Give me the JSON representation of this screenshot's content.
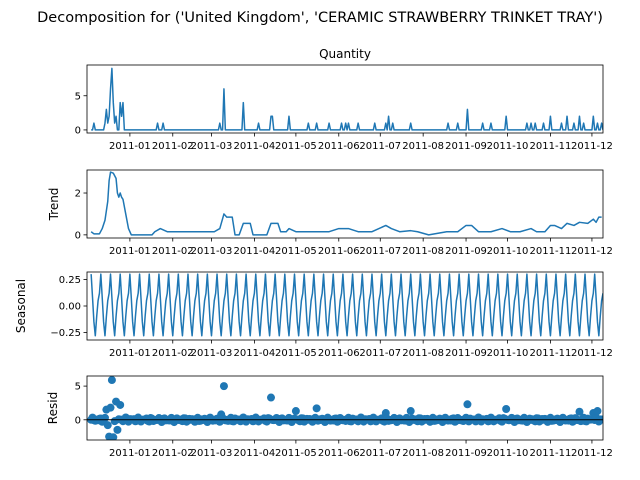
{
  "figure": {
    "suptitle": "Decomposition for ('United Kingdom', 'CERAMIC STRAWBERRY TRINKET TRAY')"
  },
  "colors": {
    "series": "#1f77b4",
    "axis": "#000000"
  },
  "chart_data": [
    {
      "type": "line",
      "title": "Quantity",
      "ylabel": "",
      "ylim": [
        -0.45,
        9.5
      ],
      "yticks": [
        0,
        5
      ],
      "xticks": [
        "2011-01",
        "2011-02",
        "2011-03",
        "2011-04",
        "2011-05",
        "2011-06",
        "2011-07",
        "2011-08",
        "2011-09",
        "2011-10",
        "2011-11",
        "2011-12"
      ],
      "xlim_dates": [
        "2010-12-01",
        "2011-12-09"
      ],
      "spikes": [
        [
          "2010-12-06",
          1
        ],
        [
          "2010-12-07",
          0
        ],
        [
          "2010-12-08",
          0
        ],
        [
          "2010-12-14",
          1
        ],
        [
          "2010-12-15",
          3
        ],
        [
          "2010-12-16",
          1
        ],
        [
          "2010-12-17",
          2
        ],
        [
          "2010-12-18",
          6
        ],
        [
          "2010-12-19",
          9
        ],
        [
          "2010-12-20",
          4
        ],
        [
          "2010-12-21",
          1
        ],
        [
          "2010-12-22",
          2
        ],
        [
          "2010-12-23",
          0
        ],
        [
          "2010-12-25",
          4
        ],
        [
          "2010-12-26",
          2
        ],
        [
          "2010-12-27",
          4
        ],
        [
          "2011-01-21",
          1
        ],
        [
          "2011-01-25",
          1
        ],
        [
          "2011-03-07",
          1
        ],
        [
          "2011-03-10",
          6
        ],
        [
          "2011-03-24",
          4
        ],
        [
          "2011-04-04",
          1
        ],
        [
          "2011-04-13",
          2
        ],
        [
          "2011-04-14",
          2
        ],
        [
          "2011-04-26",
          2
        ],
        [
          "2011-05-10",
          1
        ],
        [
          "2011-05-16",
          1
        ],
        [
          "2011-05-25",
          1
        ],
        [
          "2011-06-03",
          1
        ],
        [
          "2011-06-06",
          1
        ],
        [
          "2011-06-08",
          1
        ],
        [
          "2011-06-15",
          1
        ],
        [
          "2011-06-27",
          1
        ],
        [
          "2011-07-05",
          1
        ],
        [
          "2011-07-07",
          2
        ],
        [
          "2011-07-10",
          1
        ],
        [
          "2011-07-23",
          1
        ],
        [
          "2011-08-19",
          1
        ],
        [
          "2011-08-26",
          1
        ],
        [
          "2011-09-02",
          3
        ],
        [
          "2011-09-13",
          1
        ],
        [
          "2011-09-19",
          1
        ],
        [
          "2011-09-30",
          2
        ],
        [
          "2011-10-15",
          1
        ],
        [
          "2011-10-18",
          1
        ],
        [
          "2011-10-21",
          1
        ],
        [
          "2011-10-27",
          1
        ],
        [
          "2011-11-01",
          2
        ],
        [
          "2011-11-09",
          1
        ],
        [
          "2011-11-13",
          2
        ],
        [
          "2011-11-18",
          1
        ],
        [
          "2011-11-22",
          2
        ],
        [
          "2011-11-25",
          1
        ],
        [
          "2011-12-02",
          2
        ],
        [
          "2011-12-05",
          1
        ],
        [
          "2011-12-08",
          1
        ]
      ]
    },
    {
      "type": "line",
      "title": "",
      "ylabel": "Trend",
      "ylim": [
        -0.15,
        3.1
      ],
      "yticks": [
        0,
        2
      ],
      "xticks": [
        "2011-01",
        "2011-02",
        "2011-03",
        "2011-04",
        "2011-05",
        "2011-06",
        "2011-07",
        "2011-08",
        "2011-09",
        "2011-10",
        "2011-11",
        "2011-12"
      ],
      "xlim_dates": [
        "2010-12-01",
        "2011-12-09"
      ],
      "points": [
        [
          "2010-12-04",
          0.15
        ],
        [
          "2010-12-06",
          0.05
        ],
        [
          "2010-12-10",
          0.05
        ],
        [
          "2010-12-12",
          0.3
        ],
        [
          "2010-12-14",
          0.7
        ],
        [
          "2010-12-16",
          1.6
        ],
        [
          "2010-12-17",
          2.6
        ],
        [
          "2010-12-18",
          3.0
        ],
        [
          "2010-12-20",
          2.95
        ],
        [
          "2010-12-22",
          2.7
        ],
        [
          "2010-12-23",
          2.0
        ],
        [
          "2010-12-24",
          1.8
        ],
        [
          "2010-12-25",
          2.0
        ],
        [
          "2010-12-26",
          1.8
        ],
        [
          "2010-12-27",
          1.7
        ],
        [
          "2010-12-29",
          1.0
        ],
        [
          "2010-12-31",
          0.3
        ],
        [
          "2011-01-02",
          0.0
        ],
        [
          "2011-01-17",
          0.0
        ],
        [
          "2011-01-19",
          0.15
        ],
        [
          "2011-01-23",
          0.3
        ],
        [
          "2011-01-28",
          0.15
        ],
        [
          "2011-03-03",
          0.15
        ],
        [
          "2011-03-07",
          0.3
        ],
        [
          "2011-03-10",
          1.0
        ],
        [
          "2011-03-12",
          0.85
        ],
        [
          "2011-03-16",
          0.85
        ],
        [
          "2011-03-18",
          0.0
        ],
        [
          "2011-03-21",
          0.0
        ],
        [
          "2011-03-24",
          0.55
        ],
        [
          "2011-03-29",
          0.55
        ],
        [
          "2011-03-31",
          0.0
        ],
        [
          "2011-04-10",
          0.0
        ],
        [
          "2011-04-13",
          0.55
        ],
        [
          "2011-04-18",
          0.55
        ],
        [
          "2011-04-20",
          0.15
        ],
        [
          "2011-04-24",
          0.15
        ],
        [
          "2011-04-26",
          0.3
        ],
        [
          "2011-05-01",
          0.15
        ],
        [
          "2011-05-10",
          0.15
        ],
        [
          "2011-05-25",
          0.15
        ],
        [
          "2011-06-01",
          0.3
        ],
        [
          "2011-06-08",
          0.3
        ],
        [
          "2011-06-15",
          0.15
        ],
        [
          "2011-06-25",
          0.15
        ],
        [
          "2011-07-05",
          0.45
        ],
        [
          "2011-07-09",
          0.3
        ],
        [
          "2011-07-15",
          0.15
        ],
        [
          "2011-07-23",
          0.2
        ],
        [
          "2011-07-28",
          0.15
        ],
        [
          "2011-08-05",
          0.0
        ],
        [
          "2011-08-18",
          0.15
        ],
        [
          "2011-08-26",
          0.15
        ],
        [
          "2011-09-01",
          0.45
        ],
        [
          "2011-09-05",
          0.45
        ],
        [
          "2011-09-10",
          0.15
        ],
        [
          "2011-09-19",
          0.15
        ],
        [
          "2011-09-27",
          0.3
        ],
        [
          "2011-10-03",
          0.15
        ],
        [
          "2011-10-10",
          0.15
        ],
        [
          "2011-10-18",
          0.3
        ],
        [
          "2011-10-22",
          0.15
        ],
        [
          "2011-10-28",
          0.15
        ],
        [
          "2011-11-01",
          0.45
        ],
        [
          "2011-11-04",
          0.45
        ],
        [
          "2011-11-09",
          0.3
        ],
        [
          "2011-11-13",
          0.55
        ],
        [
          "2011-11-18",
          0.45
        ],
        [
          "2011-11-22",
          0.6
        ],
        [
          "2011-11-28",
          0.55
        ],
        [
          "2011-12-02",
          0.75
        ],
        [
          "2011-12-04",
          0.6
        ],
        [
          "2011-12-06",
          0.85
        ],
        [
          "2011-12-08",
          0.85
        ]
      ]
    },
    {
      "type": "line",
      "title": "",
      "ylabel": "Seasonal",
      "ylim": [
        -0.32,
        0.32
      ],
      "yticks": [
        0.25,
        0.0,
        -0.25
      ],
      "ytick_labels": [
        "0.25",
        "0.00",
        "−0.25"
      ],
      "xticks": [
        "2011-01",
        "2011-02",
        "2011-03",
        "2011-04",
        "2011-05",
        "2011-06",
        "2011-07",
        "2011-08",
        "2011-09",
        "2011-10",
        "2011-11",
        "2011-12"
      ],
      "xlim_dates": [
        "2010-12-01",
        "2011-12-09"
      ],
      "period_days": 7,
      "weekly_pattern": [
        0.3,
        0.08,
        -0.15,
        -0.28,
        -0.1,
        0.05,
        0.12
      ]
    },
    {
      "type": "scatter",
      "title": "",
      "ylabel": "Resid",
      "ylim": [
        -3.0,
        6.5
      ],
      "yticks": [
        5,
        0
      ],
      "xticks": [
        "2011-01",
        "2011-02",
        "2011-03",
        "2011-04",
        "2011-05",
        "2011-06",
        "2011-07",
        "2011-08",
        "2011-09",
        "2011-10",
        "2011-11",
        "2011-12"
      ],
      "xlim_dates": [
        "2010-12-01",
        "2011-12-09"
      ],
      "outliers": [
        [
          "2010-12-15",
          1.5
        ],
        [
          "2010-12-16",
          -0.8
        ],
        [
          "2010-12-17",
          -2.5
        ],
        [
          "2010-12-18",
          1.8
        ],
        [
          "2010-12-19",
          5.9
        ],
        [
          "2010-12-20",
          -2.6
        ],
        [
          "2010-12-22",
          2.7
        ],
        [
          "2010-12-23",
          -1.5
        ],
        [
          "2010-12-25",
          2.2
        ],
        [
          "2011-03-08",
          0.8
        ],
        [
          "2011-03-10",
          5.0
        ],
        [
          "2011-04-13",
          3.3
        ],
        [
          "2011-05-01",
          1.3
        ],
        [
          "2011-05-16",
          1.7
        ],
        [
          "2011-07-05",
          1.0
        ],
        [
          "2011-07-23",
          1.3
        ],
        [
          "2011-09-02",
          2.3
        ],
        [
          "2011-09-30",
          1.6
        ],
        [
          "2011-11-22",
          1.2
        ],
        [
          "2011-12-02",
          1.0
        ],
        [
          "2011-12-05",
          1.3
        ]
      ]
    }
  ]
}
